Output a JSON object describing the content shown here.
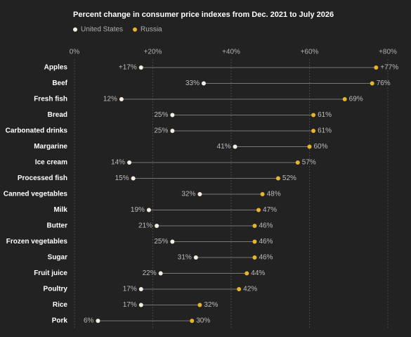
{
  "chart_data": {
    "type": "dumbbell",
    "title": "Percent change in consumer price indexes from Dec. 2021 to July 2026",
    "categories": [
      "Apples",
      "Beef",
      "Fresh fish",
      "Bread",
      "Carbonated drinks",
      "Margarine",
      "Ice cream",
      "Processed fish",
      "Canned vegetables",
      "Milk",
      "Butter",
      "Frozen vegetables",
      "Sugar",
      "Fruit juice",
      "Poultry",
      "Rice",
      "Pork"
    ],
    "series": [
      {
        "name": "United States",
        "color": "#f4efe4",
        "values": [
          17,
          33,
          12,
          25,
          25,
          41,
          14,
          15,
          32,
          19,
          21,
          25,
          31,
          22,
          17,
          17,
          6
        ],
        "value_labels": [
          "+17%",
          "33%",
          "12%",
          "25%",
          "25%",
          "41%",
          "14%",
          "15%",
          "32%",
          "19%",
          "21%",
          "25%",
          "31%",
          "22%",
          "17%",
          "17%",
          "6%"
        ]
      },
      {
        "name": "Russia",
        "color": "#e6b52e",
        "values": [
          77,
          76,
          69,
          61,
          61,
          60,
          57,
          52,
          48,
          47,
          46,
          46,
          46,
          44,
          42,
          32,
          30
        ],
        "value_labels": [
          "+77%",
          "76%",
          "69%",
          "61%",
          "61%",
          "60%",
          "57%",
          "52%",
          "48%",
          "47%",
          "46%",
          "46%",
          "46%",
          "44%",
          "42%",
          "32%",
          "30%"
        ]
      }
    ],
    "xlim": [
      0,
      80
    ],
    "xticks": [
      {
        "value": 0,
        "label": "0%"
      },
      {
        "value": 20,
        "label": "+20%"
      },
      {
        "value": 40,
        "label": "+40%"
      },
      {
        "value": 60,
        "label": "+60%"
      },
      {
        "value": 80,
        "label": "+80%"
      }
    ],
    "grid": true
  }
}
